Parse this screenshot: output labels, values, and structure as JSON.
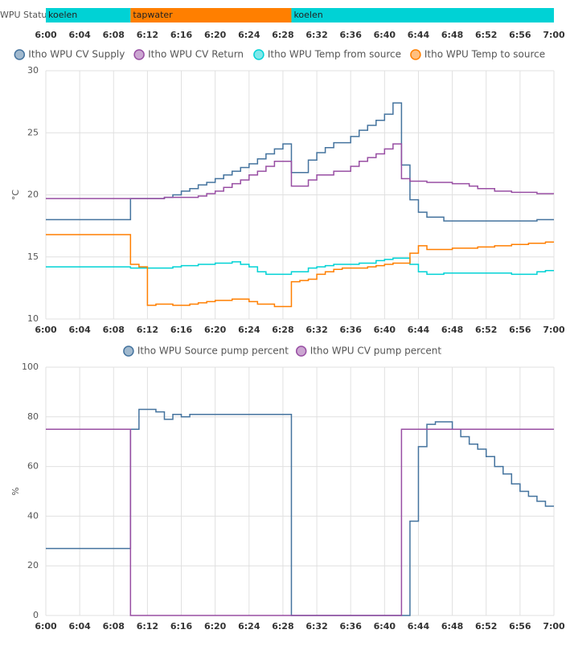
{
  "timeline": {
    "label": "WPU Status",
    "xlim": [
      "6:00",
      "7:00"
    ],
    "xticks": [
      "6:00",
      "6:04",
      "6:08",
      "6:12",
      "6:16",
      "6:20",
      "6:24",
      "6:28",
      "6:32",
      "6:36",
      "6:40",
      "6:44",
      "6:48",
      "6:52",
      "6:56",
      "7:00"
    ],
    "segments": [
      {
        "label": "koelen",
        "start": "6:00",
        "end": "6:10",
        "color": "#00d2d5"
      },
      {
        "label": "tapwater",
        "start": "6:10",
        "end": "6:29",
        "color": "#ff7f00"
      },
      {
        "label": "koelen",
        "start": "6:29",
        "end": "7:00",
        "color": "#00d2d5"
      }
    ]
  },
  "chart_data": [
    {
      "type": "step",
      "ylabel": "°C",
      "xlim": [
        "6:00",
        "7:00"
      ],
      "ylim": [
        10,
        30
      ],
      "yticks": [
        10,
        15,
        20,
        25,
        30
      ],
      "grid": true,
      "xticks": [
        "6:00",
        "6:04",
        "6:08",
        "6:12",
        "6:16",
        "6:20",
        "6:24",
        "6:28",
        "6:32",
        "6:36",
        "6:40",
        "6:44",
        "6:48",
        "6:52",
        "6:56",
        "7:00"
      ],
      "series": [
        {
          "name": "Itho WPU CV Supply",
          "color": "#44739e",
          "x": [
            "6:00",
            "6:10",
            "6:14",
            "6:15",
            "6:16",
            "6:17",
            "6:18",
            "6:19",
            "6:20",
            "6:21",
            "6:22",
            "6:23",
            "6:24",
            "6:25",
            "6:26",
            "6:27",
            "6:28",
            "6:29",
            "6:31",
            "6:32",
            "6:33",
            "6:34",
            "6:36",
            "6:37",
            "6:38",
            "6:39",
            "6:40",
            "6:41",
            "6:42",
            "6:43",
            "6:44",
            "6:45",
            "6:47",
            "6:58"
          ],
          "values": [
            18.0,
            19.7,
            19.8,
            20.0,
            20.3,
            20.5,
            20.8,
            21.0,
            21.3,
            21.6,
            21.9,
            22.2,
            22.5,
            22.9,
            23.3,
            23.7,
            24.1,
            21.8,
            22.8,
            23.4,
            23.8,
            24.2,
            24.7,
            25.2,
            25.6,
            26.0,
            26.5,
            27.4,
            22.4,
            19.6,
            18.6,
            18.2,
            17.9,
            18.0
          ]
        },
        {
          "name": "Itho WPU CV Return",
          "color": "#984ea3",
          "x": [
            "6:00",
            "6:14",
            "6:18",
            "6:19",
            "6:20",
            "6:21",
            "6:22",
            "6:23",
            "6:24",
            "6:25",
            "6:26",
            "6:27",
            "6:29",
            "6:31",
            "6:32",
            "6:34",
            "6:36",
            "6:37",
            "6:38",
            "6:39",
            "6:40",
            "6:41",
            "6:42",
            "6:43",
            "6:45",
            "6:48",
            "6:50",
            "6:51",
            "6:53",
            "6:55",
            "6:58"
          ],
          "values": [
            19.7,
            19.8,
            19.9,
            20.1,
            20.3,
            20.6,
            20.9,
            21.2,
            21.6,
            21.9,
            22.3,
            22.7,
            20.7,
            21.2,
            21.6,
            21.9,
            22.3,
            22.7,
            23.0,
            23.3,
            23.7,
            24.1,
            21.3,
            21.1,
            21.0,
            20.9,
            20.7,
            20.5,
            20.3,
            20.2,
            20.1
          ]
        },
        {
          "name": "Itho WPU Temp from source",
          "color": "#00d2d5",
          "x": [
            "6:00",
            "6:10",
            "6:15",
            "6:16",
            "6:18",
            "6:20",
            "6:22",
            "6:23",
            "6:24",
            "6:25",
            "6:26",
            "6:29",
            "6:31",
            "6:32",
            "6:33",
            "6:34",
            "6:37",
            "6:39",
            "6:40",
            "6:41",
            "6:43",
            "6:44",
            "6:45",
            "6:47",
            "6:55",
            "6:58",
            "6:59"
          ],
          "values": [
            14.2,
            14.1,
            14.2,
            14.3,
            14.4,
            14.5,
            14.6,
            14.4,
            14.2,
            13.8,
            13.6,
            13.8,
            14.1,
            14.2,
            14.3,
            14.4,
            14.5,
            14.7,
            14.8,
            14.9,
            14.4,
            13.8,
            13.6,
            13.7,
            13.6,
            13.8,
            13.9
          ]
        },
        {
          "name": "Itho WPU Temp to source",
          "color": "#ff7f00",
          "x": [
            "6:00",
            "6:10",
            "6:11",
            "6:12",
            "6:13",
            "6:15",
            "6:17",
            "6:18",
            "6:19",
            "6:20",
            "6:22",
            "6:24",
            "6:25",
            "6:27",
            "6:29",
            "6:30",
            "6:31",
            "6:32",
            "6:33",
            "6:34",
            "6:35",
            "6:38",
            "6:39",
            "6:40",
            "6:41",
            "6:43",
            "6:44",
            "6:45",
            "6:48",
            "6:51",
            "6:53",
            "6:55",
            "6:57",
            "6:59"
          ],
          "values": [
            16.8,
            14.4,
            14.2,
            11.1,
            11.2,
            11.1,
            11.2,
            11.3,
            11.4,
            11.5,
            11.6,
            11.4,
            11.2,
            11.0,
            13.0,
            13.1,
            13.2,
            13.6,
            13.8,
            14.0,
            14.1,
            14.2,
            14.3,
            14.4,
            14.5,
            15.3,
            15.9,
            15.6,
            15.7,
            15.8,
            15.9,
            16.0,
            16.1,
            16.2
          ]
        }
      ]
    },
    {
      "type": "step",
      "ylabel": "%",
      "xlim": [
        "6:00",
        "7:00"
      ],
      "ylim": [
        0,
        100
      ],
      "yticks": [
        0,
        20,
        40,
        60,
        80,
        100
      ],
      "grid": true,
      "xticks": [
        "6:00",
        "6:04",
        "6:08",
        "6:12",
        "6:16",
        "6:20",
        "6:24",
        "6:28",
        "6:32",
        "6:36",
        "6:40",
        "6:44",
        "6:48",
        "6:52",
        "6:56",
        "7:00"
      ],
      "series": [
        {
          "name": "Itho WPU Source pump percent",
          "color": "#44739e",
          "x": [
            "6:00",
            "6:10",
            "6:11",
            "6:13",
            "6:14",
            "6:15",
            "6:16",
            "6:17",
            "6:29",
            "6:43",
            "6:44",
            "6:45",
            "6:46",
            "6:48",
            "6:49",
            "6:50",
            "6:51",
            "6:52",
            "6:53",
            "6:54",
            "6:55",
            "6:56",
            "6:57",
            "6:58",
            "6:59"
          ],
          "values": [
            27,
            75,
            83,
            82,
            79,
            81,
            80,
            81,
            0,
            38,
            68,
            77,
            78,
            75,
            72,
            69,
            67,
            64,
            60,
            57,
            53,
            50,
            48,
            46,
            44
          ]
        },
        {
          "name": "Itho WPU CV pump percent",
          "color": "#984ea3",
          "x": [
            "6:00",
            "6:10",
            "6:42"
          ],
          "values": [
            75,
            0,
            75
          ]
        }
      ]
    }
  ]
}
